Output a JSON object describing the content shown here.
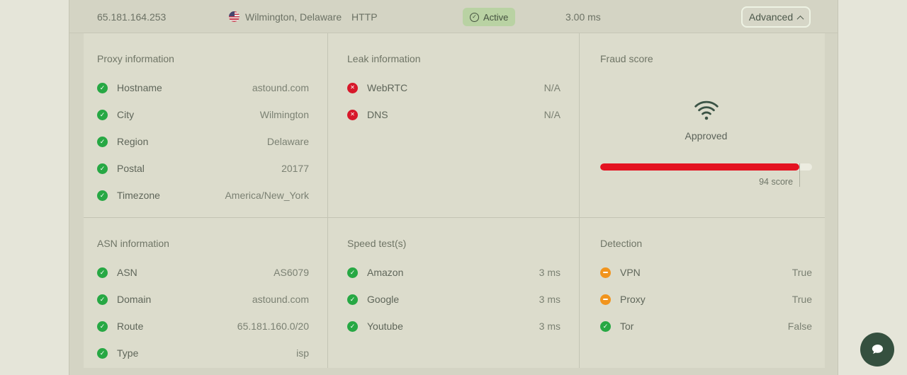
{
  "header": {
    "ip": "65.181.164.253",
    "location": "Wilmington, Delaware",
    "protocol": "HTTP",
    "status_label": "Active",
    "latency": "3.00 ms",
    "advanced_label": "Advanced"
  },
  "sections": {
    "proxy": {
      "title": "Proxy information",
      "rows": [
        {
          "label": "Hostname",
          "value": "astound.com",
          "status": "ok"
        },
        {
          "label": "City",
          "value": "Wilmington",
          "status": "ok"
        },
        {
          "label": "Region",
          "value": "Delaware",
          "status": "ok"
        },
        {
          "label": "Postal",
          "value": "20177",
          "status": "ok"
        },
        {
          "label": "Timezone",
          "value": "America/New_York",
          "status": "ok"
        }
      ]
    },
    "leak": {
      "title": "Leak information",
      "rows": [
        {
          "label": "WebRTC",
          "value": "N/A",
          "status": "fail"
        },
        {
          "label": "DNS",
          "value": "N/A",
          "status": "fail"
        }
      ]
    },
    "fraud": {
      "title": "Fraud score",
      "verdict": "Approved",
      "score": 94,
      "score_label": "94 score"
    },
    "asn": {
      "title": "ASN information",
      "rows": [
        {
          "label": "ASN",
          "value": "AS6079",
          "status": "ok"
        },
        {
          "label": "Domain",
          "value": "astound.com",
          "status": "ok"
        },
        {
          "label": "Route",
          "value": "65.181.160.0/20",
          "status": "ok"
        },
        {
          "label": "Type",
          "value": "isp",
          "status": "ok"
        }
      ]
    },
    "speed": {
      "title": "Speed test(s)",
      "rows": [
        {
          "label": "Amazon",
          "value": "3 ms",
          "status": "ok"
        },
        {
          "label": "Google",
          "value": "3 ms",
          "status": "ok"
        },
        {
          "label": "Youtube",
          "value": "3 ms",
          "status": "ok"
        }
      ]
    },
    "detection": {
      "title": "Detection",
      "rows": [
        {
          "label": "VPN",
          "value": "True",
          "status": "warn"
        },
        {
          "label": "Proxy",
          "value": "True",
          "status": "warn"
        },
        {
          "label": "Tor",
          "value": "False",
          "status": "ok"
        }
      ]
    }
  },
  "icons": {
    "ok": "check-circle-icon",
    "fail": "x-circle-icon",
    "warn": "minus-circle-icon",
    "flag": "us-flag-icon",
    "signal": "wifi-icon",
    "chat": "chat-bubble-icon",
    "collapse": "chevron-up-icon"
  },
  "colors": {
    "ok": "#27a844",
    "fail": "#d7182a",
    "warn": "#f1941d",
    "badge_bg": "#b9d2a3",
    "badge_text": "#44513f",
    "bar_fill": "#e41220"
  }
}
